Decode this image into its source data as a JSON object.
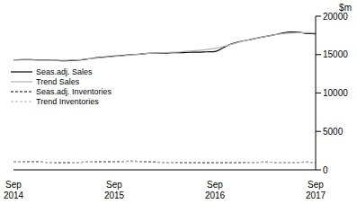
{
  "chart_data": {
    "type": "line",
    "y_label": "$m",
    "categories": [
      "Sep 2014",
      null,
      null,
      null,
      null,
      null,
      null,
      null,
      null,
      null,
      null,
      null,
      "Sep 2015",
      null,
      null,
      null,
      null,
      null,
      null,
      null,
      null,
      null,
      null,
      null,
      "Sep 2016",
      null,
      null,
      null,
      null,
      null,
      null,
      null,
      null,
      null,
      null,
      null,
      "Sep 2017"
    ],
    "ylim": [
      0,
      20000
    ],
    "yticks": [
      0,
      5000,
      10000,
      15000,
      20000
    ],
    "grid": false,
    "legend": "upper left",
    "series": [
      {
        "name": "Seas.adj. Sales",
        "color": "#000000",
        "line_style": "solid",
        "values": [
          14300,
          14350,
          14350,
          14300,
          14300,
          14250,
          14200,
          14250,
          14300,
          14450,
          14600,
          14700,
          14800,
          14900,
          15000,
          15050,
          15150,
          15200,
          15200,
          15250,
          15250,
          15300,
          15300,
          15350,
          15400,
          15900,
          16400,
          16700,
          16900,
          17150,
          17350,
          17550,
          17800,
          17950,
          17900,
          17750,
          17700
        ]
      },
      {
        "name": "Trend Sales",
        "color": "#b0b0b0",
        "line_style": "solid",
        "values": [
          14300,
          14300,
          14300,
          14250,
          14250,
          14250,
          14250,
          14300,
          14350,
          14450,
          14550,
          14650,
          14750,
          14850,
          14950,
          15050,
          15150,
          15200,
          15250,
          15300,
          15350,
          15450,
          15550,
          15650,
          15800,
          16050,
          16350,
          16650,
          16900,
          17150,
          17350,
          17550,
          17700,
          17800,
          17850,
          17850,
          17800
        ]
      },
      {
        "name": "Seas.adj. Inventories",
        "color": "#000000",
        "line_style": "dashed",
        "values": [
          1000,
          1020,
          1050,
          1030,
          980,
          960,
          950,
          970,
          990,
          1010,
          1030,
          1050,
          1080,
          1100,
          1120,
          1100,
          1050,
          1000,
          980,
          970,
          960,
          950,
          940,
          930,
          920,
          930,
          950,
          960,
          980,
          990,
          1000,
          990,
          980,
          980,
          990,
          1000,
          980
        ]
      },
      {
        "name": "Trend Inventories",
        "color": "#b0b0b0",
        "line_style": "dashed",
        "values": [
          1000,
          1010,
          1020,
          1010,
          990,
          970,
          960,
          970,
          990,
          1010,
          1030,
          1050,
          1070,
          1090,
          1100,
          1090,
          1060,
          1020,
          990,
          970,
          960,
          950,
          940,
          935,
          930,
          935,
          945,
          955,
          970,
          980,
          990,
          990,
          985,
          985,
          990,
          990,
          985
        ]
      }
    ]
  }
}
